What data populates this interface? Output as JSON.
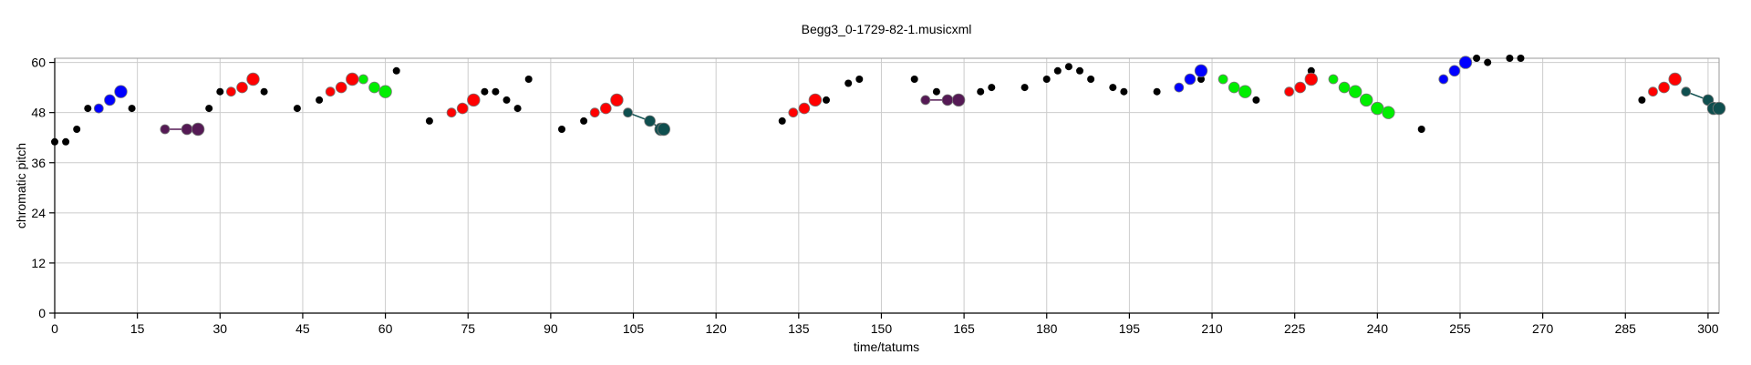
{
  "chart_data": {
    "type": "scatter",
    "title": "Begg3_0-1729-82-1.musicxml",
    "xlabel": "time/tatums",
    "ylabel": "chromatic pitch",
    "xlim": [
      0,
      302
    ],
    "ylim": [
      0,
      61
    ],
    "xticks": [
      0,
      15,
      30,
      45,
      60,
      75,
      90,
      105,
      120,
      135,
      150,
      165,
      180,
      195,
      210,
      225,
      240,
      255,
      270,
      285,
      300
    ],
    "yticks": [
      0,
      12,
      24,
      36,
      48,
      60
    ],
    "grid": true,
    "colors": {
      "black": "#000000",
      "blue": "#0000ff",
      "red": "#ff0000",
      "green": "#00ee00",
      "purple": "#551a55",
      "teal": "#0f4f4f"
    },
    "series": [
      {
        "color": "black",
        "points": [
          [
            0,
            41
          ],
          [
            2,
            41
          ],
          [
            4,
            44
          ],
          [
            6,
            49
          ],
          [
            14,
            49
          ],
          [
            28,
            49
          ],
          [
            30,
            53
          ],
          [
            38,
            53
          ],
          [
            44,
            49
          ],
          [
            48,
            51
          ],
          [
            62,
            58
          ],
          [
            68,
            46
          ],
          [
            78,
            53
          ],
          [
            80,
            53
          ],
          [
            82,
            51
          ],
          [
            84,
            49
          ],
          [
            86,
            56
          ],
          [
            92,
            44
          ],
          [
            96,
            46
          ],
          [
            132,
            46
          ],
          [
            140,
            51
          ],
          [
            144,
            55
          ],
          [
            146,
            56
          ],
          [
            156,
            56
          ],
          [
            160,
            53
          ],
          [
            168,
            53
          ],
          [
            170,
            54
          ],
          [
            176,
            54
          ],
          [
            180,
            56
          ],
          [
            182,
            58
          ],
          [
            184,
            59
          ],
          [
            186,
            58
          ],
          [
            188,
            56
          ],
          [
            192,
            54
          ],
          [
            194,
            53
          ],
          [
            200,
            53
          ],
          [
            208,
            56
          ],
          [
            218,
            51
          ],
          [
            228,
            58
          ],
          [
            248,
            44
          ],
          [
            258,
            61
          ],
          [
            260,
            60
          ],
          [
            264,
            61
          ],
          [
            266,
            61
          ],
          [
            288,
            51
          ]
        ]
      },
      {
        "color": "blue",
        "points": [
          [
            8,
            49
          ],
          [
            10,
            51
          ],
          [
            12,
            53
          ]
        ]
      },
      {
        "color": "purple",
        "connected": true,
        "points": [
          [
            20,
            44
          ],
          [
            24,
            44
          ],
          [
            26,
            44
          ]
        ]
      },
      {
        "color": "red",
        "points": [
          [
            32,
            53
          ],
          [
            34,
            54
          ],
          [
            36,
            56
          ]
        ]
      },
      {
        "color": "red",
        "points": [
          [
            50,
            53
          ],
          [
            52,
            54
          ],
          [
            54,
            56
          ]
        ]
      },
      {
        "color": "green",
        "points": [
          [
            56,
            56
          ],
          [
            58,
            54
          ],
          [
            60,
            53
          ]
        ]
      },
      {
        "color": "red",
        "points": [
          [
            72,
            48
          ],
          [
            74,
            49
          ],
          [
            76,
            51
          ]
        ]
      },
      {
        "color": "red",
        "points": [
          [
            98,
            48
          ],
          [
            100,
            49
          ],
          [
            102,
            51
          ]
        ]
      },
      {
        "color": "teal",
        "connected": true,
        "points": [
          [
            104,
            48
          ],
          [
            108,
            46
          ],
          [
            110,
            44
          ],
          [
            110.5,
            44
          ]
        ]
      },
      {
        "color": "red",
        "points": [
          [
            134,
            48
          ],
          [
            136,
            49
          ],
          [
            138,
            51
          ]
        ]
      },
      {
        "color": "purple",
        "connected": true,
        "points": [
          [
            158,
            51
          ],
          [
            162,
            51
          ],
          [
            164,
            51
          ]
        ]
      },
      {
        "color": "blue",
        "points": [
          [
            204,
            54
          ],
          [
            206,
            56
          ],
          [
            208,
            58
          ]
        ]
      },
      {
        "color": "green",
        "points": [
          [
            212,
            56
          ],
          [
            214,
            54
          ],
          [
            216,
            53
          ]
        ]
      },
      {
        "color": "red",
        "points": [
          [
            224,
            53
          ],
          [
            226,
            54
          ],
          [
            228,
            56
          ]
        ]
      },
      {
        "color": "green",
        "points": [
          [
            232,
            56
          ],
          [
            234,
            54
          ],
          [
            236,
            53
          ],
          [
            238,
            51
          ],
          [
            240,
            49
          ],
          [
            242,
            48
          ]
        ]
      },
      {
        "color": "blue",
        "points": [
          [
            252,
            56
          ],
          [
            254,
            58
          ],
          [
            256,
            60
          ]
        ]
      },
      {
        "color": "red",
        "points": [
          [
            290,
            53
          ],
          [
            292,
            54
          ],
          [
            294,
            56
          ]
        ]
      },
      {
        "color": "teal",
        "connected": true,
        "points": [
          [
            296,
            53
          ],
          [
            300,
            51
          ],
          [
            301,
            49
          ],
          [
            302,
            49
          ]
        ]
      }
    ]
  }
}
